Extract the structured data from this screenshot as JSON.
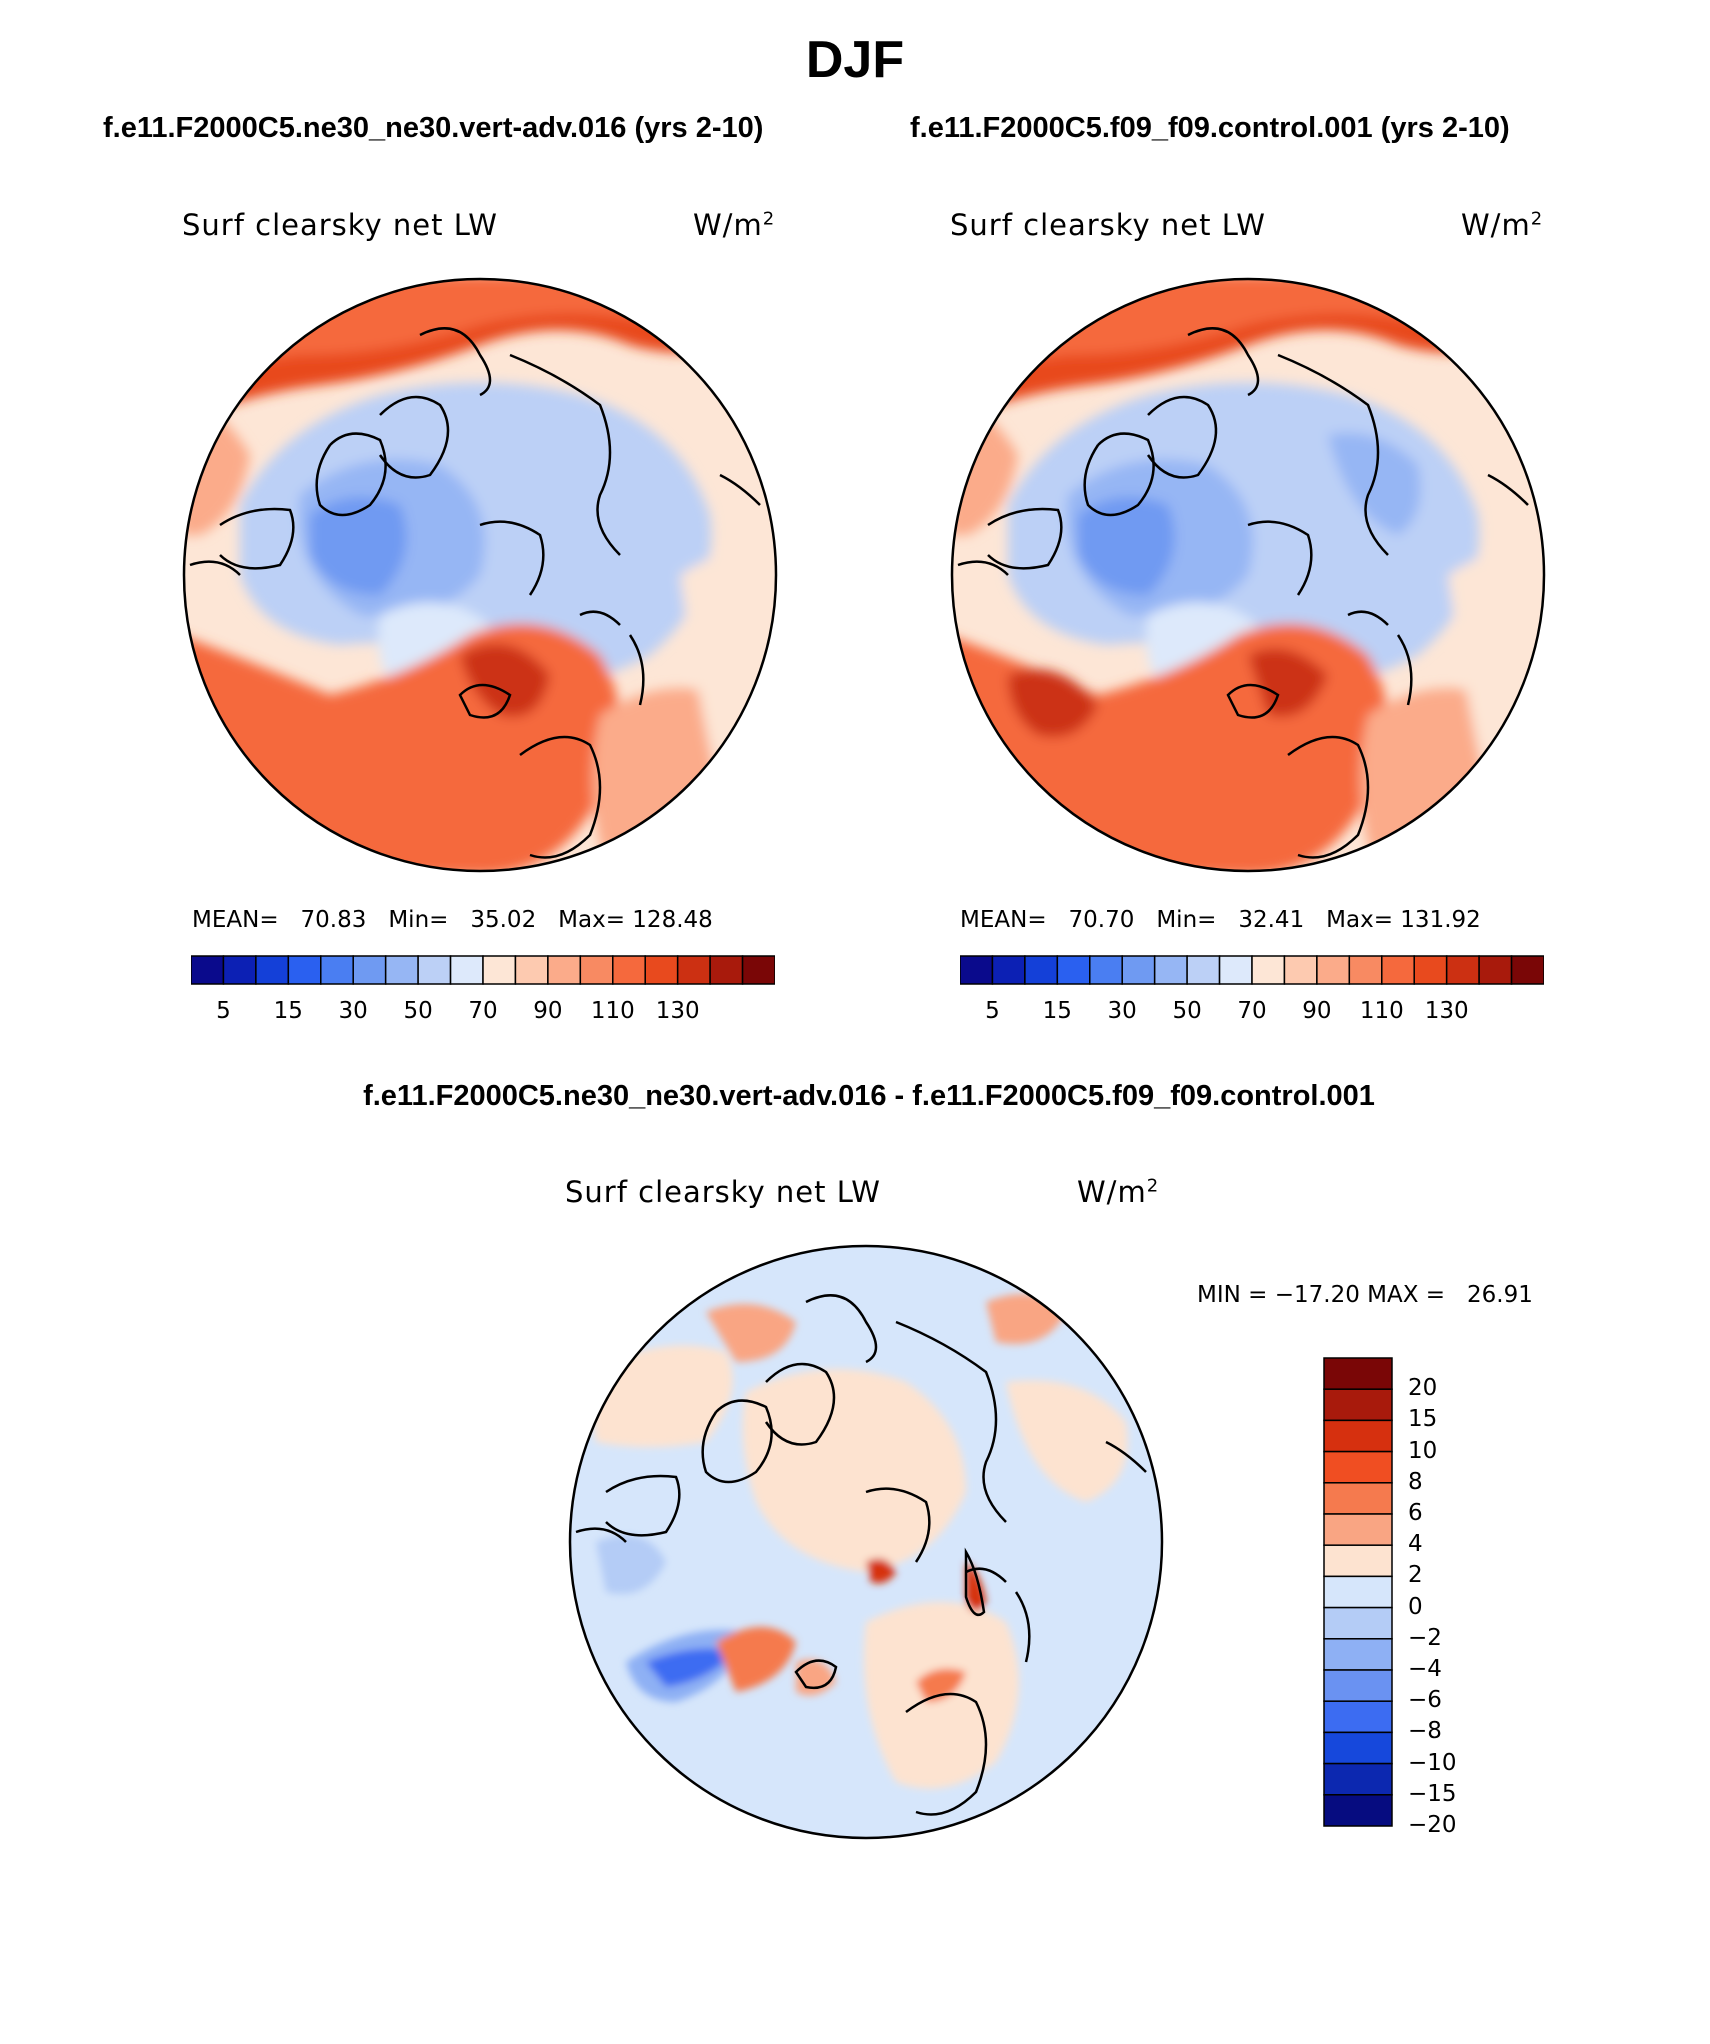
{
  "title": "DJF",
  "panels": [
    {
      "case_title": "f.e11.F2000C5.ne30_ne30.vert-adv.016 (yrs 2-10)",
      "variable": "Surf clearsky net LW",
      "units_base": "W/m",
      "units_exp": "2",
      "mean_label": "MEAN=",
      "mean": "70.83",
      "min_label": "Min=",
      "min": "35.02",
      "max_label": "Max=",
      "max": "128.48"
    },
    {
      "case_title": "f.e11.F2000C5.f09_f09.control.001 (yrs 2-10)",
      "variable": "Surf clearsky net LW",
      "units_base": "W/m",
      "units_exp": "2",
      "mean_label": "MEAN=",
      "mean": "70.70",
      "min_label": "Min=",
      "min": "32.41",
      "max_label": "Max=",
      "max": "131.92"
    }
  ],
  "diff_panel": {
    "case_title": "f.e11.F2000C5.ne30_ne30.vert-adv.016 - f.e11.F2000C5.f09_f09.control.001",
    "variable": "Surf clearsky net LW",
    "units_base": "W/m",
    "units_exp": "2",
    "minmax": "MIN = −17.20 MAX =   26.91"
  },
  "colorbar_abs": {
    "colors": [
      "#0a0a8c",
      "#0c20b4",
      "#1440d8",
      "#2a60f0",
      "#4a7ef2",
      "#6f9af2",
      "#96b6f4",
      "#bcd0f6",
      "#dde9fb",
      "#fde6d6",
      "#fdcab0",
      "#fbab8a",
      "#f88a62",
      "#f5693d",
      "#e84a1e",
      "#cc3012",
      "#a81a0c",
      "#7a0606"
    ],
    "labels": [
      "5",
      "15",
      "30",
      "50",
      "70",
      "90",
      "110",
      "130"
    ]
  },
  "colorbar_diff": {
    "colors": [
      "#7a0606",
      "#a81a0c",
      "#d6300f",
      "#f04e22",
      "#f57a4e",
      "#f9a583",
      "#fde3d0",
      "#d6e6fb",
      "#b4ccf6",
      "#8eb0f4",
      "#6a92f2",
      "#3c6cf2",
      "#1648dc",
      "#0c28b0",
      "#060c80"
    ],
    "labels": [
      "20",
      "15",
      "10",
      "8",
      "6",
      "4",
      "2",
      "0",
      "−2",
      "−4",
      "−6",
      "−8",
      "−10",
      "−15",
      "−20"
    ]
  },
  "color_fields": {
    "abs_field": [
      "#f5693d",
      "#e84a1e",
      "#fbab8a",
      "#fde6d6",
      "#bcd0f6",
      "#96b6f4",
      "#6f9af2",
      "#dde9fb",
      "#cc3012"
    ],
    "diff_field": [
      "#fde3d0",
      "#d6e6fb",
      "#f9a583",
      "#8eb0f4",
      "#f57a4e",
      "#3c6cf2",
      "#d6300f",
      "#b4ccf6"
    ]
  }
}
